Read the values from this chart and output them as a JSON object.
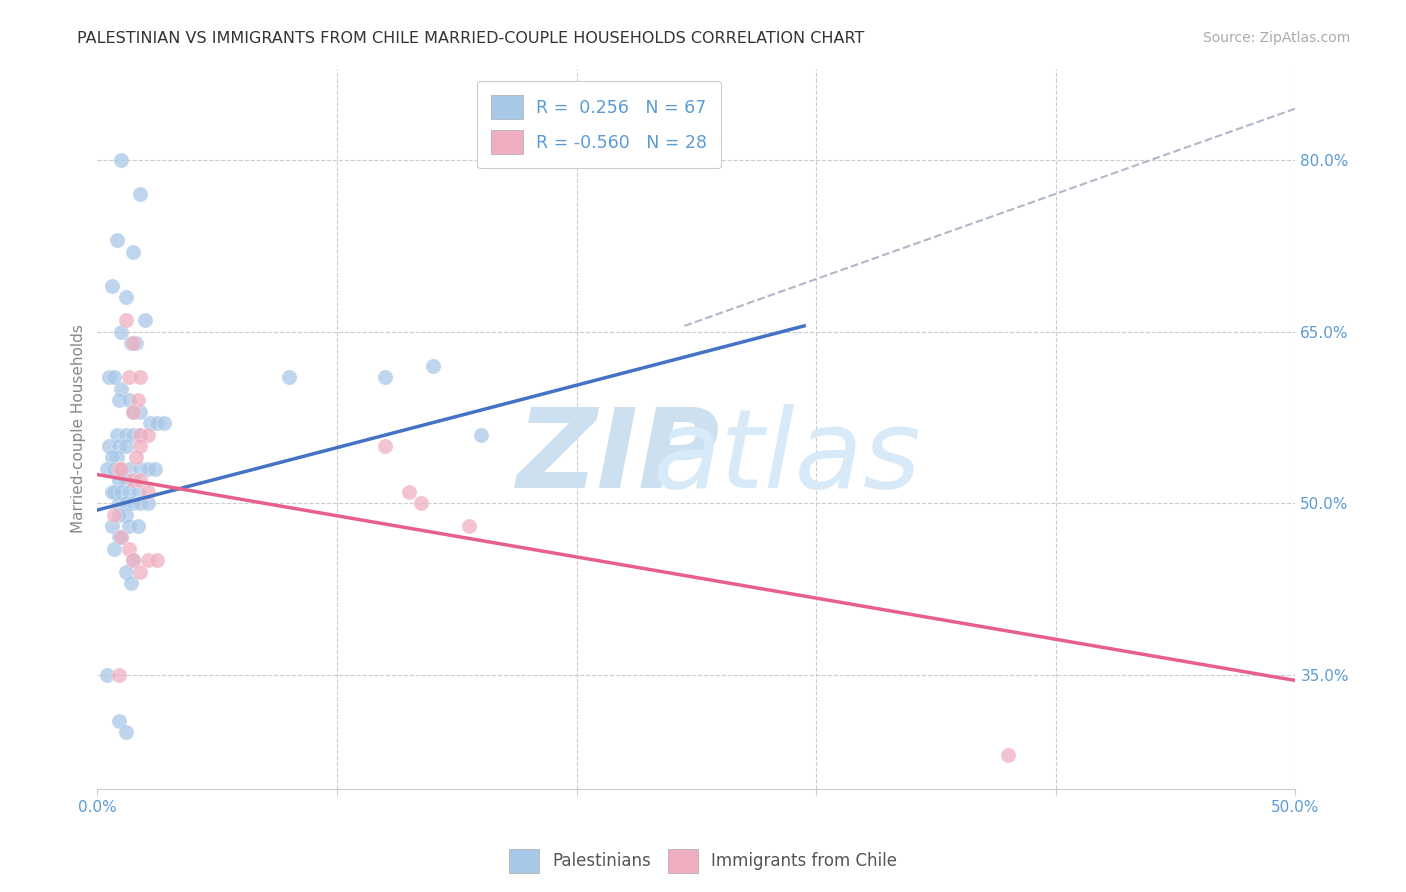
{
  "title": "PALESTINIAN VS IMMIGRANTS FROM CHILE MARRIED-COUPLE HOUSEHOLDS CORRELATION CHART",
  "source": "Source: ZipAtlas.com",
  "ylabel_label": "Married-couple Households",
  "xlim": [
    0.0,
    0.5
  ],
  "ylim": [
    0.25,
    0.88
  ],
  "background_color": "#ffffff",
  "grid_color": "#cccccc",
  "legend_R1": "R =  0.256",
  "legend_N1": "N = 67",
  "legend_R2": "R = -0.560",
  "legend_N2": "N = 28",
  "blue_color": "#a8c8e8",
  "pink_color": "#f0afc0",
  "blue_line_color": "#4472c4",
  "pink_line_color": "#e8608a",
  "dashed_line_color": "#b0b8c8",
  "label_color": "#5b9bd5",
  "palestinians_x": [
    0.01,
    0.018,
    0.008,
    0.015,
    0.006,
    0.012,
    0.02,
    0.01,
    0.014,
    0.016,
    0.005,
    0.007,
    0.01,
    0.009,
    0.013,
    0.015,
    0.018,
    0.022,
    0.025,
    0.028,
    0.008,
    0.012,
    0.015,
    0.018,
    0.005,
    0.009,
    0.012,
    0.008,
    0.006,
    0.004,
    0.007,
    0.01,
    0.013,
    0.018,
    0.021,
    0.024,
    0.015,
    0.012,
    0.009,
    0.006,
    0.007,
    0.01,
    0.013,
    0.017,
    0.009,
    0.012,
    0.015,
    0.018,
    0.021,
    0.012,
    0.009,
    0.006,
    0.013,
    0.017,
    0.01,
    0.009,
    0.007,
    0.015,
    0.012,
    0.014,
    0.14,
    0.08,
    0.12,
    0.16,
    0.004,
    0.009,
    0.012
  ],
  "palestinians_y": [
    0.8,
    0.77,
    0.73,
    0.72,
    0.69,
    0.68,
    0.66,
    0.65,
    0.64,
    0.64,
    0.61,
    0.61,
    0.6,
    0.59,
    0.59,
    0.58,
    0.58,
    0.57,
    0.57,
    0.57,
    0.56,
    0.56,
    0.56,
    0.56,
    0.55,
    0.55,
    0.55,
    0.54,
    0.54,
    0.53,
    0.53,
    0.53,
    0.53,
    0.53,
    0.53,
    0.53,
    0.52,
    0.52,
    0.52,
    0.51,
    0.51,
    0.51,
    0.51,
    0.51,
    0.5,
    0.5,
    0.5,
    0.5,
    0.5,
    0.49,
    0.49,
    0.48,
    0.48,
    0.48,
    0.47,
    0.47,
    0.46,
    0.45,
    0.44,
    0.43,
    0.62,
    0.61,
    0.61,
    0.56,
    0.35,
    0.31,
    0.3
  ],
  "immigrants_x": [
    0.012,
    0.015,
    0.013,
    0.018,
    0.017,
    0.015,
    0.018,
    0.021,
    0.018,
    0.016,
    0.009,
    0.01,
    0.015,
    0.018,
    0.021,
    0.12,
    0.13,
    0.135,
    0.155,
    0.38,
    0.007,
    0.01,
    0.013,
    0.015,
    0.018,
    0.021,
    0.009,
    0.025
  ],
  "immigrants_y": [
    0.66,
    0.64,
    0.61,
    0.61,
    0.59,
    0.58,
    0.56,
    0.56,
    0.55,
    0.54,
    0.53,
    0.53,
    0.52,
    0.52,
    0.51,
    0.55,
    0.51,
    0.5,
    0.48,
    0.28,
    0.49,
    0.47,
    0.46,
    0.45,
    0.44,
    0.45,
    0.35,
    0.45
  ],
  "blue_trend_x": [
    0.0,
    0.295
  ],
  "blue_trend_y": [
    0.494,
    0.655
  ],
  "pink_trend_x": [
    0.0,
    0.5
  ],
  "pink_trend_y": [
    0.525,
    0.345
  ],
  "dashed_trend_x": [
    0.245,
    0.5
  ],
  "dashed_trend_y": [
    0.655,
    0.845
  ],
  "grid_yticks": [
    0.35,
    0.5,
    0.65,
    0.8
  ],
  "grid_xticks": [
    0.1,
    0.2,
    0.3,
    0.4,
    0.5
  ]
}
